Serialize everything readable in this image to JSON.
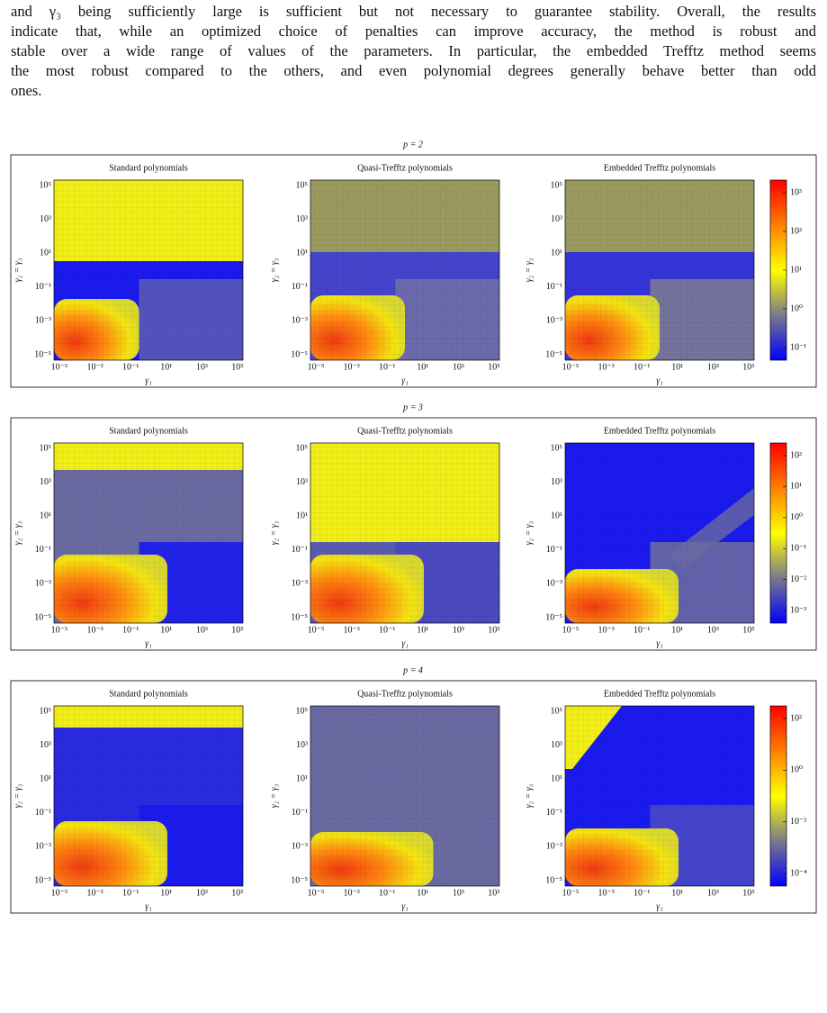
{
  "paragraph": [
    "and γ₃ being sufficiently large is sufficient but not necessary to guarantee stability. Overall, the results",
    "indicate that, while an optimized choice of penalties can improve accuracy, the method is robust and",
    "stable over a wide range of values of the parameters. In particular, the embedded Trefftz method seems",
    "the most robust compared to the others, and even polynomial degrees generally behave better than odd",
    "ones."
  ],
  "axes": {
    "xlabel": "γ₁",
    "ylabel": "γ₂ = γ₃",
    "ticks": [
      "10⁻⁵",
      "10⁻³",
      "10⁻¹",
      "10¹",
      "10³",
      "10⁵"
    ]
  },
  "figures": [
    {
      "label": "p = 2",
      "panels": [
        "Standard polynomials",
        "Quasi-Trefftz polynomials",
        "Embedded Trefftz polynomials"
      ],
      "colorbar_ticks": [
        "10³",
        "10²",
        "10¹",
        "10⁰",
        "10⁻¹"
      ]
    },
    {
      "label": "p = 3",
      "panels": [
        "Standard polynomials",
        "Quasi-Trefftz polynomials",
        "Embedded Trefftz polynomials"
      ],
      "colorbar_ticks": [
        "10²",
        "10¹",
        "10⁰",
        "10⁻¹",
        "10⁻²",
        "10⁻³"
      ]
    },
    {
      "label": "p = 4",
      "panels": [
        "Standard polynomials",
        "Quasi-Trefftz polynomials",
        "Embedded Trefftz polynomials"
      ],
      "colorbar_ticks": [
        "10²",
        "10⁰",
        "10⁻²",
        "10⁻⁴"
      ]
    }
  ]
}
